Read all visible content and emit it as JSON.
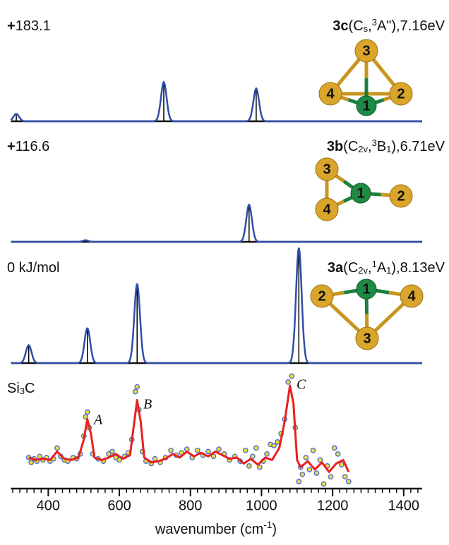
{
  "chart_data": [
    {
      "type": "stick",
      "energy_label": [
        {
          "text": "+",
          "style": "bold"
        },
        {
          "text": "183.1"
        }
      ],
      "structure_label": [
        {
          "text": "3c",
          "style": "bold"
        },
        {
          "text": "(C"
        },
        {
          "text": "s",
          "style": "sub"
        },
        {
          "text": ","
        },
        {
          "text": "3",
          "style": "sup"
        },
        {
          "text": "A\")"
        },
        {
          "text": ",7.16eV"
        }
      ],
      "atom_labels": [
        "3",
        "4",
        "2",
        "1"
      ],
      "x": [
        310,
        725,
        985
      ],
      "values": [
        7,
        37,
        31
      ],
      "xlim": [
        295,
        1452
      ],
      "ylim": [
        0,
        110
      ],
      "stick_color": "#000000",
      "curve_color": "#2f4fa8"
    },
    {
      "type": "stick",
      "energy_label": [
        {
          "text": "+",
          "style": "bold"
        },
        {
          "text": "116.6"
        }
      ],
      "structure_label": [
        {
          "text": "3b",
          "style": "bold"
        },
        {
          "text": "(C"
        },
        {
          "text": "2v",
          "style": "sub"
        },
        {
          "text": ","
        },
        {
          "text": "3",
          "style": "sup"
        },
        {
          "text": "B"
        },
        {
          "text": "1",
          "style": "sub"
        },
        {
          "text": "),6.71eV"
        }
      ],
      "atom_labels": [
        "3",
        "4",
        "1",
        "2"
      ],
      "x": [
        505,
        965
      ],
      "values": [
        1.5,
        35
      ],
      "xlim": [
        295,
        1452
      ],
      "ylim": [
        0,
        110
      ],
      "stick_color": "#000000",
      "curve_color": "#2f4fa8"
    },
    {
      "type": "stick",
      "energy_label": [
        {
          "text": "0 kJ/mol"
        }
      ],
      "structure_label": [
        {
          "text": "3a",
          "style": "bold"
        },
        {
          "text": "(C"
        },
        {
          "text": "2v",
          "style": "sub"
        },
        {
          "text": ","
        },
        {
          "text": "1",
          "style": "sup"
        },
        {
          "text": "A"
        },
        {
          "text": "1",
          "style": "sub"
        },
        {
          "text": "),8.13eV"
        }
      ],
      "atom_labels": [
        "2",
        "1",
        "4",
        "3"
      ],
      "x": [
        345,
        510,
        650,
        1105
      ],
      "values": [
        17,
        33,
        75,
        109
      ],
      "xlim": [
        295,
        1452
      ],
      "ylim": [
        0,
        110
      ],
      "stick_color": "#000000",
      "curve_color": "#2f4fa8"
    },
    {
      "type": "scatter_line",
      "label": [
        {
          "text": "Si"
        },
        {
          "text": "3",
          "style": "sub"
        },
        {
          "text": "C"
        }
      ],
      "annotations": [
        "A",
        "B",
        "C"
      ],
      "points": {
        "color": "#e8dc3c",
        "edge_color": "#4a6bd0",
        "x": [
          345,
          352,
          360,
          368,
          376,
          385,
          395,
          405,
          415,
          425,
          435,
          445,
          455,
          470,
          480,
          490,
          500,
          505,
          510,
          515,
          525,
          540,
          555,
          570,
          580,
          590,
          600,
          615,
          625,
          635,
          645,
          650,
          655,
          665,
          675,
          690,
          700,
          715,
          730,
          745,
          760,
          775,
          790,
          805,
          820,
          835,
          850,
          865,
          880,
          895,
          910,
          925,
          940,
          955,
          965,
          975,
          985,
          995,
          1005,
          1015,
          1025,
          1035,
          1045,
          1055,
          1065,
          1075,
          1085,
          1095,
          1105,
          1110,
          1115,
          1125,
          1135,
          1145,
          1155,
          1165,
          1175,
          1185,
          1195,
          1205,
          1215,
          1225,
          1235,
          1245
        ],
        "values": [
          0.3,
          0.26,
          0.29,
          0.27,
          0.31,
          0.28,
          0.3,
          0.27,
          0.29,
          0.38,
          0.31,
          0.28,
          0.27,
          0.3,
          0.29,
          0.33,
          0.48,
          0.64,
          0.68,
          0.55,
          0.33,
          0.29,
          0.27,
          0.33,
          0.35,
          0.3,
          0.28,
          0.31,
          0.34,
          0.45,
          0.85,
          0.89,
          0.7,
          0.35,
          0.27,
          0.25,
          0.29,
          0.26,
          0.3,
          0.36,
          0.32,
          0.34,
          0.37,
          0.3,
          0.36,
          0.32,
          0.35,
          0.31,
          0.37,
          0.33,
          0.28,
          0.31,
          0.27,
          0.36,
          0.23,
          0.31,
          0.38,
          0.22,
          0.27,
          0.33,
          0.41,
          0.4,
          0.43,
          0.5,
          0.62,
          0.93,
          0.98,
          0.55,
          0.1,
          0.22,
          0.16,
          0.3,
          0.2,
          0.36,
          0.17,
          0.28,
          0.08,
          0.23,
          0.14,
          0.38,
          0.33,
          0.24,
          0.14,
          0.1
        ]
      },
      "line": {
        "color": "#e82020",
        "x": [
          345,
          365,
          385,
          405,
          425,
          445,
          465,
          485,
          500,
          510,
          520,
          530,
          550,
          570,
          590,
          610,
          630,
          640,
          650,
          660,
          670,
          690,
          710,
          730,
          750,
          770,
          790,
          810,
          830,
          850,
          870,
          890,
          910,
          930,
          950,
          970,
          990,
          1010,
          1030,
          1050,
          1065,
          1080,
          1090,
          1100,
          1110,
          1130,
          1150,
          1170,
          1190,
          1210,
          1230,
          1245
        ],
        "values": [
          0.3,
          0.28,
          0.29,
          0.28,
          0.35,
          0.29,
          0.28,
          0.3,
          0.45,
          0.62,
          0.5,
          0.3,
          0.28,
          0.3,
          0.33,
          0.29,
          0.32,
          0.55,
          0.78,
          0.6,
          0.3,
          0.26,
          0.27,
          0.29,
          0.33,
          0.3,
          0.35,
          0.31,
          0.34,
          0.31,
          0.35,
          0.32,
          0.29,
          0.3,
          0.25,
          0.29,
          0.24,
          0.3,
          0.28,
          0.38,
          0.6,
          0.9,
          0.75,
          0.28,
          0.22,
          0.27,
          0.2,
          0.26,
          0.18,
          0.25,
          0.28,
          0.18
        ]
      },
      "xlim": [
        295,
        1452
      ],
      "ylim": [
        0,
        1
      ],
      "xticks": [
        400,
        600,
        800,
        1000,
        1200,
        1400
      ],
      "minor_xticks": [
        300,
        320,
        340,
        360,
        380,
        400,
        420,
        440,
        460,
        480,
        500,
        520,
        540,
        560,
        580,
        600,
        620,
        640,
        660,
        680,
        700,
        720,
        740,
        760,
        780,
        800,
        820,
        840,
        860,
        880,
        900,
        920,
        940,
        960,
        980,
        1000,
        1020,
        1040,
        1060,
        1080,
        1100,
        1120,
        1140,
        1160,
        1180,
        1200,
        1220,
        1240,
        1260,
        1280,
        1300,
        1320,
        1340,
        1360,
        1380,
        1400,
        1420,
        1440
      ],
      "xlabel": [
        {
          "text": "wavenumber (cm"
        },
        {
          "text": "-1",
          "style": "sup"
        },
        {
          "text": ")"
        }
      ]
    }
  ]
}
